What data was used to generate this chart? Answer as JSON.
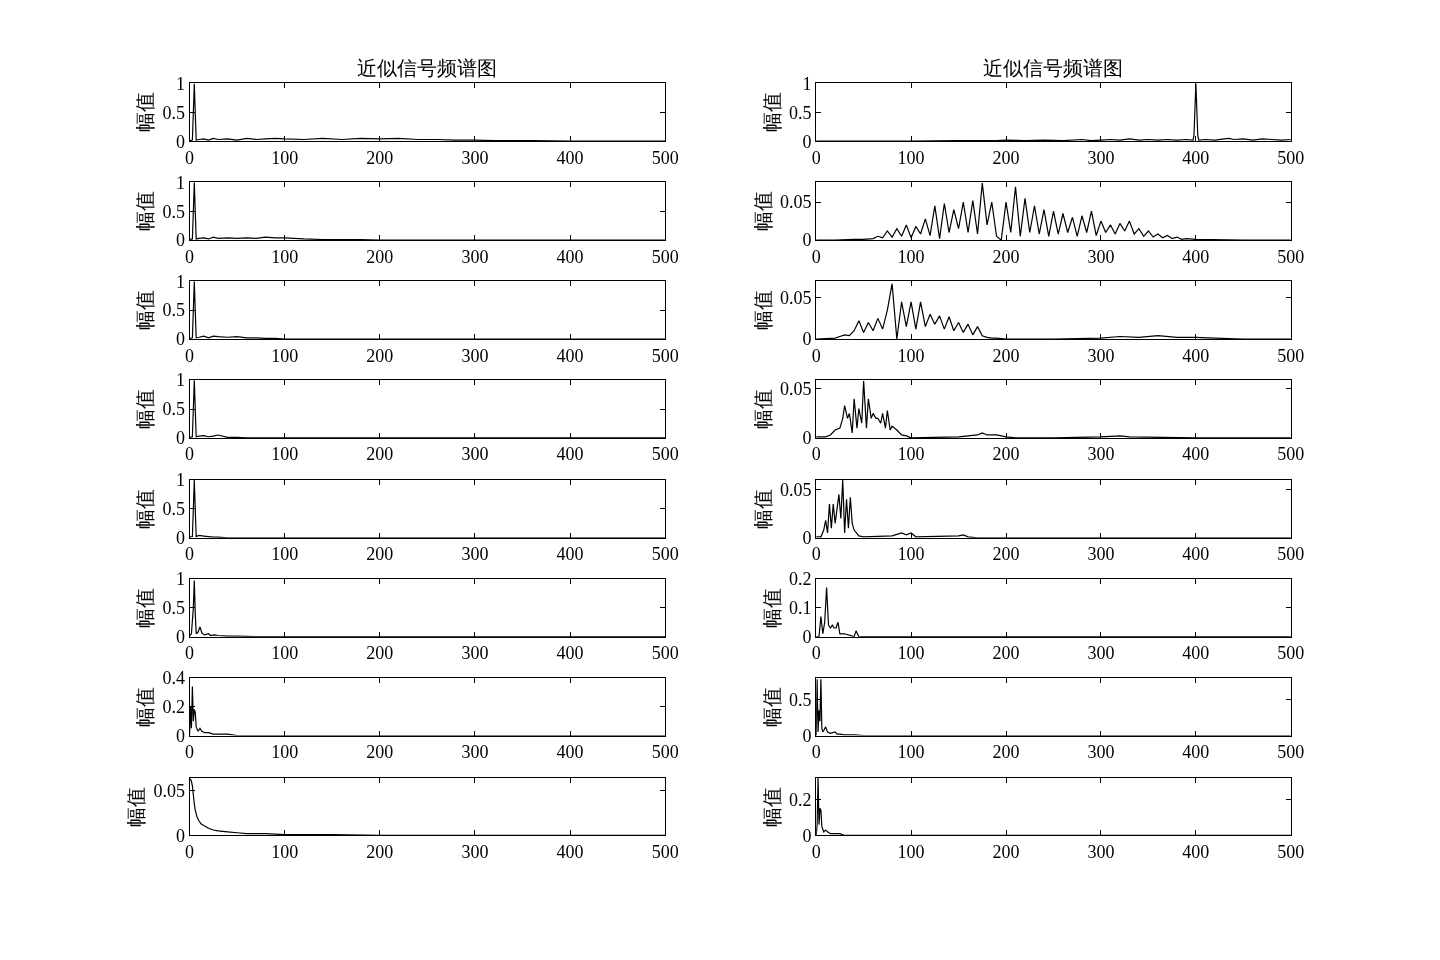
{
  "chart_data": [
    {
      "type": "line",
      "title": "近似信号频谱图",
      "ylabel": "幅值",
      "color": "#000000",
      "xlim": [
        0,
        500
      ],
      "xticks": [
        0,
        100,
        200,
        300,
        400,
        500
      ],
      "ylim": [
        0,
        1
      ],
      "yticks": [
        0,
        0.5,
        1
      ],
      "x": [
        0,
        3,
        4,
        5,
        6,
        7,
        10,
        15,
        20,
        25,
        30,
        40,
        50,
        60,
        70,
        80,
        90,
        100,
        120,
        140,
        160,
        180,
        200,
        220,
        240,
        260,
        280,
        300,
        320,
        340,
        360,
        400,
        450,
        500
      ],
      "values": [
        0.01,
        0.02,
        0.5,
        1,
        0.5,
        0.02,
        0.03,
        0.04,
        0.02,
        0.05,
        0.03,
        0.04,
        0.02,
        0.05,
        0.03,
        0.04,
        0.05,
        0.04,
        0.03,
        0.05,
        0.03,
        0.05,
        0.04,
        0.05,
        0.03,
        0.03,
        0.02,
        0.02,
        0.01,
        0.01,
        0.01,
        0,
        0,
        0
      ]
    },
    {
      "type": "line",
      "title": "近似信号频谱图",
      "ylabel": "幅值",
      "color": "#000000",
      "xlim": [
        0,
        500
      ],
      "xticks": [
        0,
        100,
        200,
        300,
        400,
        500
      ],
      "ylim": [
        0,
        1
      ],
      "yticks": [
        0,
        0.5,
        1
      ],
      "x": [
        0,
        50,
        100,
        150,
        170,
        190,
        200,
        220,
        240,
        260,
        280,
        290,
        300,
        310,
        320,
        330,
        340,
        350,
        360,
        370,
        380,
        390,
        397,
        398,
        400,
        402,
        403,
        410,
        420,
        430,
        435,
        440,
        450,
        460,
        470,
        480,
        490,
        500
      ],
      "values": [
        0,
        0,
        0,
        0.01,
        0.01,
        0.01,
        0.02,
        0.01,
        0.02,
        0.01,
        0.03,
        0.01,
        0.02,
        0.03,
        0.02,
        0.04,
        0.02,
        0.03,
        0.02,
        0.03,
        0.02,
        0.03,
        0.02,
        0.1,
        1,
        0.1,
        0.02,
        0.03,
        0.02,
        0.04,
        0.05,
        0.03,
        0.04,
        0.02,
        0.04,
        0.03,
        0.02,
        0.03
      ]
    },
    {
      "type": "line",
      "ylabel": "幅值",
      "color": "#000000",
      "xlim": [
        0,
        500
      ],
      "xticks": [
        0,
        100,
        200,
        300,
        400,
        500
      ],
      "ylim": [
        0,
        1
      ],
      "yticks": [
        0,
        0.5,
        1
      ],
      "x": [
        0,
        3,
        4,
        5,
        6,
        7,
        10,
        15,
        20,
        25,
        30,
        40,
        50,
        60,
        70,
        80,
        90,
        100,
        120,
        140,
        160,
        180,
        200,
        220,
        240,
        260,
        280,
        300,
        320,
        340,
        360,
        400,
        450,
        500
      ],
      "values": [
        0.01,
        0.02,
        0.5,
        1,
        0.5,
        0.02,
        0.03,
        0.04,
        0.02,
        0.05,
        0.03,
        0.04,
        0.03,
        0.04,
        0.03,
        0.05,
        0.04,
        0.04,
        0.02,
        0.01,
        0.01,
        0.01,
        0,
        0,
        0,
        0,
        0,
        0,
        0,
        0,
        0,
        0,
        0,
        0
      ]
    },
    {
      "type": "line",
      "ylabel": "幅值",
      "color": "#000000",
      "xlim": [
        0,
        500
      ],
      "xticks": [
        0,
        100,
        200,
        300,
        400,
        500
      ],
      "ylim": [
        0,
        0.076
      ],
      "yticks": [
        0,
        0.05
      ],
      "x": [
        0,
        20,
        40,
        50,
        60,
        65,
        70,
        75,
        80,
        85,
        90,
        95,
        100,
        105,
        110,
        115,
        120,
        125,
        130,
        135,
        140,
        145,
        150,
        155,
        160,
        165,
        170,
        175,
        180,
        185,
        190,
        195,
        200,
        205,
        210,
        215,
        220,
        225,
        230,
        235,
        240,
        245,
        250,
        255,
        260,
        265,
        270,
        275,
        280,
        285,
        290,
        295,
        300,
        305,
        310,
        315,
        320,
        325,
        330,
        335,
        340,
        345,
        350,
        355,
        360,
        365,
        370,
        375,
        380,
        385,
        390,
        400,
        450,
        500
      ],
      "values": [
        0,
        0,
        0.001,
        0.001,
        0.002,
        0.005,
        0.003,
        0.012,
        0.004,
        0.015,
        0.005,
        0.02,
        0.003,
        0.018,
        0.008,
        0.028,
        0.006,
        0.045,
        0.002,
        0.048,
        0.01,
        0.04,
        0.015,
        0.05,
        0.01,
        0.052,
        0.008,
        0.075,
        0.02,
        0.05,
        0.005,
        0,
        0.05,
        0.01,
        0.07,
        0.005,
        0.055,
        0.01,
        0.045,
        0.008,
        0.04,
        0.005,
        0.038,
        0.008,
        0.035,
        0.01,
        0.03,
        0.005,
        0.032,
        0.01,
        0.038,
        0.006,
        0.025,
        0.01,
        0.02,
        0.008,
        0.022,
        0.012,
        0.025,
        0.008,
        0.015,
        0.005,
        0.012,
        0.004,
        0.008,
        0.003,
        0.006,
        0.002,
        0.004,
        0.001,
        0.002,
        0.001,
        0,
        0
      ]
    },
    {
      "type": "line",
      "ylabel": "幅值",
      "color": "#000000",
      "xlim": [
        0,
        500
      ],
      "xticks": [
        0,
        100,
        200,
        300,
        400,
        500
      ],
      "ylim": [
        0,
        1
      ],
      "yticks": [
        0,
        0.5,
        1
      ],
      "x": [
        0,
        3,
        4,
        5,
        6,
        7,
        10,
        15,
        20,
        25,
        30,
        40,
        50,
        60,
        70,
        80,
        90,
        100,
        120,
        140,
        160,
        180,
        200,
        220,
        240,
        260,
        280,
        300,
        320,
        340,
        360,
        400,
        450,
        500
      ],
      "values": [
        0.01,
        0.02,
        0.5,
        1,
        0.5,
        0.02,
        0.03,
        0.05,
        0.02,
        0.05,
        0.04,
        0.03,
        0.04,
        0.02,
        0.02,
        0.01,
        0.01,
        0,
        0,
        0,
        0,
        0,
        0,
        0,
        0,
        0,
        0,
        0,
        0,
        0,
        0,
        0,
        0,
        0
      ]
    },
    {
      "type": "line",
      "ylabel": "幅值",
      "color": "#000000",
      "xlim": [
        0,
        500
      ],
      "xticks": [
        0,
        100,
        200,
        300,
        400,
        500
      ],
      "ylim": [
        0,
        0.07
      ],
      "yticks": [
        0,
        0.05
      ],
      "x": [
        0,
        20,
        25,
        30,
        35,
        40,
        45,
        50,
        55,
        60,
        65,
        70,
        75,
        80,
        85,
        90,
        95,
        100,
        105,
        110,
        115,
        120,
        125,
        130,
        135,
        140,
        145,
        150,
        155,
        160,
        165,
        170,
        175,
        180,
        185,
        190,
        200,
        250,
        300,
        320,
        340,
        360,
        380,
        400,
        420,
        450,
        500
      ],
      "values": [
        0,
        0.001,
        0.003,
        0.005,
        0.004,
        0.01,
        0.022,
        0.008,
        0.02,
        0.01,
        0.025,
        0.012,
        0.035,
        0.067,
        0,
        0.045,
        0.015,
        0.045,
        0.012,
        0.045,
        0.015,
        0.03,
        0.018,
        0.028,
        0.012,
        0.027,
        0.01,
        0.02,
        0.008,
        0.018,
        0.005,
        0.015,
        0.004,
        0.002,
        0.001,
        0.001,
        0,
        0,
        0.001,
        0.003,
        0.002,
        0.004,
        0.002,
        0.002,
        0.001,
        0,
        0
      ]
    },
    {
      "type": "line",
      "ylabel": "幅值",
      "color": "#000000",
      "xlim": [
        0,
        500
      ],
      "xticks": [
        0,
        100,
        200,
        300,
        400,
        500
      ],
      "ylim": [
        0,
        1
      ],
      "yticks": [
        0,
        0.5,
        1
      ],
      "x": [
        0,
        3,
        4,
        5,
        6,
        7,
        10,
        15,
        20,
        25,
        30,
        40,
        50,
        60,
        70,
        80,
        90,
        100,
        120,
        140,
        160,
        180,
        200,
        220,
        240,
        260,
        280,
        300,
        320,
        340,
        360,
        400,
        450,
        500
      ],
      "values": [
        0.01,
        0.02,
        0.5,
        1,
        0.5,
        0.02,
        0.03,
        0.04,
        0.02,
        0.03,
        0.05,
        0.01,
        0.01,
        0,
        0,
        0,
        0,
        0,
        0,
        0,
        0,
        0,
        0,
        0,
        0,
        0,
        0,
        0,
        0,
        0,
        0,
        0,
        0,
        0
      ]
    },
    {
      "type": "line",
      "ylabel": "幅值",
      "color": "#000000",
      "xlim": [
        0,
        500
      ],
      "xticks": [
        0,
        100,
        200,
        300,
        400,
        500
      ],
      "ylim": [
        0,
        0.059
      ],
      "yticks": [
        0,
        0.05
      ],
      "x": [
        0,
        10,
        15,
        20,
        25,
        28,
        30,
        33,
        35,
        38,
        40,
        43,
        45,
        48,
        50,
        53,
        55,
        58,
        60,
        63,
        65,
        68,
        70,
        73,
        75,
        78,
        80,
        85,
        90,
        95,
        100,
        150,
        160,
        170,
        175,
        180,
        190,
        200,
        210,
        250,
        300,
        320,
        330,
        400,
        500
      ],
      "values": [
        0.001,
        0.001,
        0.003,
        0.008,
        0.01,
        0.02,
        0.033,
        0.02,
        0.025,
        0.005,
        0.04,
        0.01,
        0.03,
        0.015,
        0.058,
        0.01,
        0.04,
        0.02,
        0.025,
        0.02,
        0.02,
        0.015,
        0.025,
        0.01,
        0.028,
        0.008,
        0.012,
        0.008,
        0.003,
        0.002,
        0,
        0.001,
        0.002,
        0.003,
        0.005,
        0.003,
        0.003,
        0.001,
        0,
        0,
        0.001,
        0.002,
        0.001,
        0,
        0
      ]
    },
    {
      "type": "line",
      "ylabel": "幅值",
      "color": "#000000",
      "xlim": [
        0,
        500
      ],
      "xticks": [
        0,
        100,
        200,
        300,
        400,
        500
      ],
      "ylim": [
        0,
        1
      ],
      "yticks": [
        0,
        0.5,
        1
      ],
      "x": [
        0,
        3,
        4,
        5,
        6,
        7,
        10,
        15,
        20,
        25,
        30,
        40,
        50,
        60,
        70,
        80,
        90,
        100,
        120,
        140,
        160,
        180,
        200,
        220,
        240,
        260,
        280,
        300,
        320,
        340,
        360,
        400,
        450,
        500
      ],
      "values": [
        0.01,
        0.02,
        0.5,
        1,
        0.5,
        0.02,
        0.04,
        0.03,
        0.02,
        0.01,
        0.01,
        0,
        0,
        0,
        0,
        0,
        0,
        0,
        0,
        0,
        0,
        0,
        0,
        0,
        0,
        0,
        0,
        0,
        0,
        0,
        0,
        0,
        0,
        0
      ]
    },
    {
      "type": "line",
      "ylabel": "幅值",
      "color": "#000000",
      "xlim": [
        0,
        500
      ],
      "xticks": [
        0,
        100,
        200,
        300,
        400,
        500
      ],
      "ylim": [
        0,
        0.06
      ],
      "yticks": [
        0,
        0.05
      ],
      "x": [
        0,
        5,
        8,
        10,
        12,
        14,
        16,
        18,
        20,
        22,
        24,
        26,
        28,
        30,
        32,
        34,
        36,
        38,
        40,
        45,
        50,
        80,
        90,
        95,
        100,
        105,
        150,
        155,
        160,
        170,
        200,
        300,
        400,
        500
      ],
      "values": [
        0.001,
        0.001,
        0.008,
        0.018,
        0.005,
        0.035,
        0.01,
        0.035,
        0.015,
        0.03,
        0.045,
        0.02,
        0.06,
        0.005,
        0.04,
        0.01,
        0.042,
        0.015,
        0.008,
        0.002,
        0.001,
        0.002,
        0.005,
        0.003,
        0.005,
        0.001,
        0.002,
        0.003,
        0.001,
        0,
        0,
        0,
        0,
        0
      ]
    },
    {
      "type": "line",
      "ylabel": "幅值",
      "color": "#000000",
      "xlim": [
        0,
        500
      ],
      "xticks": [
        0,
        100,
        200,
        300,
        400,
        500
      ],
      "ylim": [
        0,
        1
      ],
      "yticks": [
        0,
        0.5,
        1
      ],
      "x": [
        0,
        2,
        4,
        5,
        6,
        7,
        9,
        11,
        13,
        16,
        20,
        22,
        26,
        30,
        40,
        50,
        70,
        100,
        150,
        200,
        300,
        400,
        500
      ],
      "values": [
        0.01,
        0.05,
        0.5,
        0.97,
        0.4,
        0.05,
        0.08,
        0.17,
        0.06,
        0.03,
        0.05,
        0.02,
        0.03,
        0.02,
        0.01,
        0.01,
        0,
        0,
        0,
        0,
        0,
        0,
        0
      ]
    },
    {
      "type": "line",
      "ylabel": "幅值",
      "color": "#000000",
      "xlim": [
        0,
        500
      ],
      "xticks": [
        0,
        100,
        200,
        300,
        400,
        500
      ],
      "ylim": [
        0,
        0.2
      ],
      "yticks": [
        0,
        0.1,
        0.2
      ],
      "x": [
        0,
        3,
        5,
        7,
        9,
        11,
        13,
        15,
        17,
        19,
        21,
        23,
        25,
        30,
        40,
        42,
        45,
        60,
        80,
        100,
        200,
        300,
        400,
        500
      ],
      "values": [
        0,
        0,
        0.07,
        0.01,
        0.05,
        0.17,
        0.04,
        0.03,
        0.04,
        0.03,
        0.03,
        0.05,
        0.01,
        0.01,
        0,
        0.02,
        0,
        0,
        0,
        0,
        0,
        0,
        0,
        0
      ]
    },
    {
      "type": "line",
      "ylabel": "幅值",
      "color": "#000000",
      "xlim": [
        0,
        500
      ],
      "xticks": [
        0,
        100,
        200,
        300,
        400,
        500
      ],
      "ylim": [
        0,
        0.4
      ],
      "yticks": [
        0,
        0.2,
        0.4
      ],
      "x": [
        0,
        1,
        2,
        3,
        4,
        5,
        6,
        7,
        9,
        11,
        13,
        16,
        20,
        25,
        30,
        40,
        50,
        70,
        100,
        150,
        200,
        300,
        400,
        500
      ],
      "values": [
        0,
        0.2,
        0.05,
        0.34,
        0.1,
        0.18,
        0.16,
        0.06,
        0.03,
        0.05,
        0.03,
        0.02,
        0.02,
        0.01,
        0.01,
        0.01,
        0,
        0,
        0,
        0,
        0,
        0,
        0,
        0
      ]
    },
    {
      "type": "line",
      "ylabel": "幅值",
      "color": "#000000",
      "xlim": [
        0,
        500
      ],
      "xticks": [
        0,
        100,
        200,
        300,
        400,
        500
      ],
      "ylim": [
        0,
        0.8
      ],
      "yticks": [
        0,
        0.5
      ],
      "x": [
        0,
        1,
        2,
        3,
        4,
        5,
        6,
        7,
        8,
        10,
        12,
        15,
        20,
        22,
        25,
        30,
        40,
        50,
        100,
        200,
        300,
        400,
        500
      ],
      "values": [
        0,
        0.78,
        0.05,
        0.35,
        0.2,
        0.78,
        0.1,
        0.05,
        0.07,
        0.12,
        0.05,
        0.03,
        0.05,
        0.02,
        0.02,
        0.01,
        0.01,
        0,
        0,
        0,
        0,
        0,
        0
      ]
    },
    {
      "type": "line",
      "ylabel": "幅值",
      "color": "#000000",
      "xlim": [
        0,
        500
      ],
      "xticks": [
        0,
        100,
        200,
        300,
        400,
        500
      ],
      "ylim": [
        0,
        0.064
      ],
      "yticks": [
        0,
        0.05
      ],
      "x": [
        0,
        1,
        2,
        3,
        4,
        5,
        6,
        8,
        10,
        12,
        15,
        20,
        25,
        30,
        40,
        50,
        60,
        80,
        100,
        150,
        200,
        300,
        400,
        500
      ],
      "values": [
        0.063,
        0.062,
        0.06,
        0.055,
        0.045,
        0.035,
        0.028,
        0.02,
        0.016,
        0.013,
        0.011,
        0.008,
        0.006,
        0.005,
        0.004,
        0.003,
        0.002,
        0.002,
        0.001,
        0.001,
        0,
        0,
        0,
        0
      ]
    },
    {
      "type": "line",
      "ylabel": "幅值",
      "color": "#000000",
      "xlim": [
        0,
        500
      ],
      "xticks": [
        0,
        100,
        200,
        300,
        400,
        500
      ],
      "ylim": [
        0,
        0.32
      ],
      "yticks": [
        0,
        0.2
      ],
      "x": [
        0,
        1,
        2,
        3,
        4,
        5,
        6,
        8,
        10,
        12,
        15,
        20,
        25,
        30,
        40,
        50,
        100,
        200,
        300,
        400,
        500
      ],
      "values": [
        0,
        0.06,
        0.32,
        0.06,
        0.15,
        0.14,
        0.05,
        0.02,
        0.03,
        0.02,
        0.01,
        0.01,
        0.01,
        0,
        0,
        0,
        0,
        0,
        0,
        0,
        0
      ]
    }
  ]
}
